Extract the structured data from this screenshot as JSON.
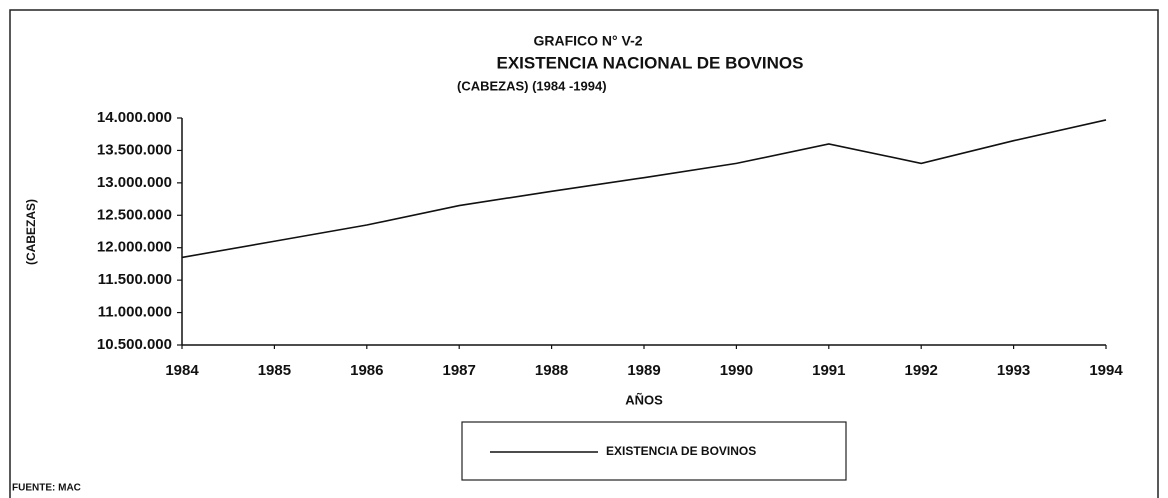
{
  "chart_data": {
    "type": "line",
    "title": "GRAFICO N° V-2",
    "subtitle": "EXISTENCIA NACIONAL DE  BOVINOS",
    "subtitle2": "(CABEZAS) (1984 -1994)",
    "x_label": "AÑOS",
    "y_label": "(CABEZAS)",
    "source": "FUENTE: MAC",
    "x": [
      1984,
      1985,
      1986,
      1987,
      1988,
      1989,
      1990,
      1991,
      1992,
      1993,
      1994
    ],
    "series": [
      {
        "name": "EXISTENCIA DE BOVINOS",
        "color": "#111111",
        "values": [
          11850000,
          12100000,
          12350000,
          12650000,
          12870000,
          13080000,
          13300000,
          13600000,
          13300000,
          13650000,
          13970000
        ]
      }
    ],
    "xlim": [
      1984,
      1994
    ],
    "xticks": [
      1984,
      1985,
      1986,
      1987,
      1988,
      1989,
      1990,
      1991,
      1992,
      1993,
      1994
    ],
    "ylim": [
      10500000,
      14000000
    ],
    "yticks": [
      {
        "value": 10500000,
        "label": "10.500.000"
      },
      {
        "value": 11000000,
        "label": "11.000.000"
      },
      {
        "value": 11500000,
        "label": "11.500.000"
      },
      {
        "value": 12000000,
        "label": "12.000.000"
      },
      {
        "value": 12500000,
        "label": "12.500.000"
      },
      {
        "value": 13000000,
        "label": "13.000.000"
      },
      {
        "value": 13500000,
        "label": "13.500.000"
      },
      {
        "value": 14000000,
        "label": "14.000.000"
      }
    ],
    "grid": false
  }
}
